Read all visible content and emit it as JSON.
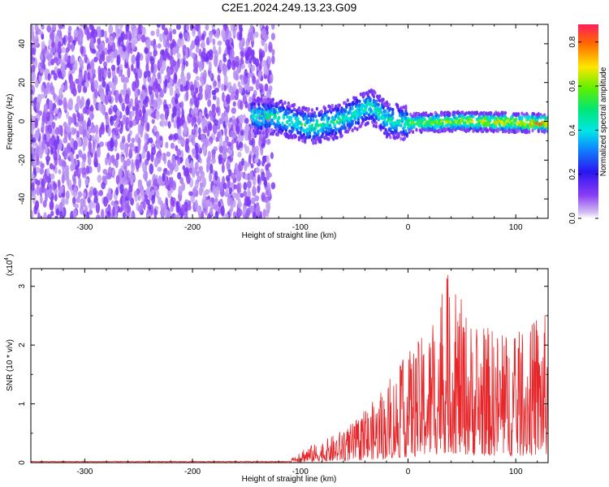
{
  "title": "C2E1.2024.249.13.23.G09",
  "chart_data": [
    {
      "type": "heatmap",
      "xlabel": "Height of straight line (km)",
      "ylabel": "Frequency (Hz)",
      "xlim": [
        -350,
        130
      ],
      "ylim": [
        -50,
        50
      ],
      "xticks": [
        -300,
        -200,
        -100,
        0,
        100
      ],
      "yticks": [
        -40,
        -20,
        0,
        20,
        40
      ],
      "grid": false,
      "colorbar": {
        "label": "Normalized spectral amplitude",
        "range": [
          0,
          0.88
        ],
        "ticks": [
          "0.0",
          "0.2",
          "0.4",
          "0.6",
          "0.8"
        ],
        "colormap": "rainbow"
      },
      "regions": [
        {
          "description_x": [
            -350,
            -125
          ],
          "note": "noise",
          "freq_range": [
            -50,
            50
          ],
          "amplitude": [
            0.0,
            0.1
          ]
        },
        {
          "description_x": [
            -145,
            130
          ],
          "note": "signal band",
          "center_freq": [
            {
              "x": -145,
              "f": 3
            },
            {
              "x": -120,
              "f": 2
            },
            {
              "x": -90,
              "f": -3
            },
            {
              "x": -60,
              "f": 1
            },
            {
              "x": -35,
              "f": 8
            },
            {
              "x": -20,
              "f": 1
            },
            {
              "x": 0,
              "f": -1
            },
            {
              "x": 50,
              "f": 0
            },
            {
              "x": 130,
              "f": -1
            }
          ],
          "amplitude_range": [
            0.1,
            0.88
          ]
        }
      ]
    },
    {
      "type": "line",
      "xlabel": "Height of straight line (km)",
      "ylabel": "SNR (10 * v/v)",
      "yscale_label": "(x10",
      "yscale_exp": "4",
      "xlim": [
        -350,
        130
      ],
      "ylim": [
        0,
        3.3
      ],
      "xticks": [
        -300,
        -200,
        -100,
        0,
        100
      ],
      "yticks": [
        0,
        1,
        2,
        3
      ],
      "grid": false,
      "series": [
        {
          "color": "#e8262a",
          "envelope": [
            {
              "x": -350,
              "max": 0.02
            },
            {
              "x": -110,
              "max": 0.03
            },
            {
              "x": -100,
              "max": 0.25
            },
            {
              "x": -80,
              "max": 0.35
            },
            {
              "x": -50,
              "max": 0.7
            },
            {
              "x": -25,
              "max": 1.2
            },
            {
              "x": 0,
              "max": 1.9
            },
            {
              "x": 20,
              "max": 2.3
            },
            {
              "x": 35,
              "max": 3.3
            },
            {
              "x": 60,
              "max": 2.4
            },
            {
              "x": 100,
              "max": 2.2
            },
            {
              "x": 130,
              "max": 2.6
            }
          ]
        }
      ]
    }
  ]
}
